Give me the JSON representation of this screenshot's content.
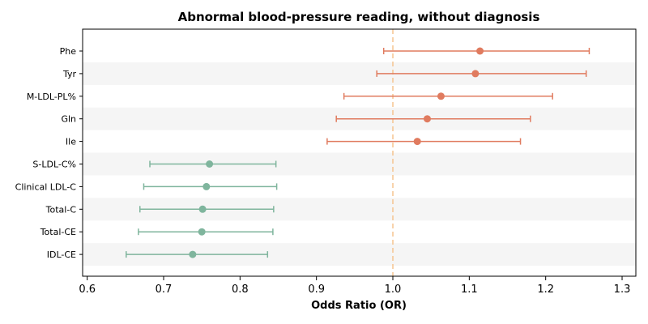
{
  "chart_data": {
    "type": "forest",
    "title": "Abnormal blood-pressure reading, without diagnosis",
    "xlabel": "Odds Ratio (OR)",
    "ylabel": "",
    "xlim": [
      0.594,
      1.318
    ],
    "xticks": [
      0.6,
      0.7,
      0.8,
      0.9,
      1.0,
      1.1,
      1.2,
      1.3
    ],
    "xtick_labels": [
      "0.6",
      "0.7",
      "0.8",
      "0.9",
      "1.0",
      "1.1",
      "1.2",
      "1.3"
    ],
    "reference_line": 1.0,
    "reference_line_color": "#f5c48f",
    "grid": false,
    "row_band_color": "#f5f5f5",
    "positive_color": "#e07b5f",
    "negative_color": "#7fb59d",
    "rows": [
      {
        "label": "Phe",
        "or": 1.114,
        "lo": 0.988,
        "hi": 1.257,
        "direction": "positive"
      },
      {
        "label": "Tyr",
        "or": 1.108,
        "lo": 0.979,
        "hi": 1.253,
        "direction": "positive"
      },
      {
        "label": "M-LDL-PL%",
        "or": 1.063,
        "lo": 0.936,
        "hi": 1.209,
        "direction": "positive"
      },
      {
        "label": "Gln",
        "or": 1.045,
        "lo": 0.926,
        "hi": 1.18,
        "direction": "positive"
      },
      {
        "label": "Ile",
        "or": 1.032,
        "lo": 0.914,
        "hi": 1.167,
        "direction": "positive"
      },
      {
        "label": "S-LDL-C%",
        "or": 0.76,
        "lo": 0.682,
        "hi": 0.847,
        "direction": "negative"
      },
      {
        "label": "Clinical LDL-C",
        "or": 0.756,
        "lo": 0.674,
        "hi": 0.848,
        "direction": "negative"
      },
      {
        "label": "Total-C",
        "or": 0.751,
        "lo": 0.669,
        "hi": 0.844,
        "direction": "negative"
      },
      {
        "label": "Total-CE",
        "or": 0.75,
        "lo": 0.667,
        "hi": 0.843,
        "direction": "negative"
      },
      {
        "label": "IDL-CE",
        "or": 0.738,
        "lo": 0.651,
        "hi": 0.836,
        "direction": "negative"
      }
    ]
  }
}
